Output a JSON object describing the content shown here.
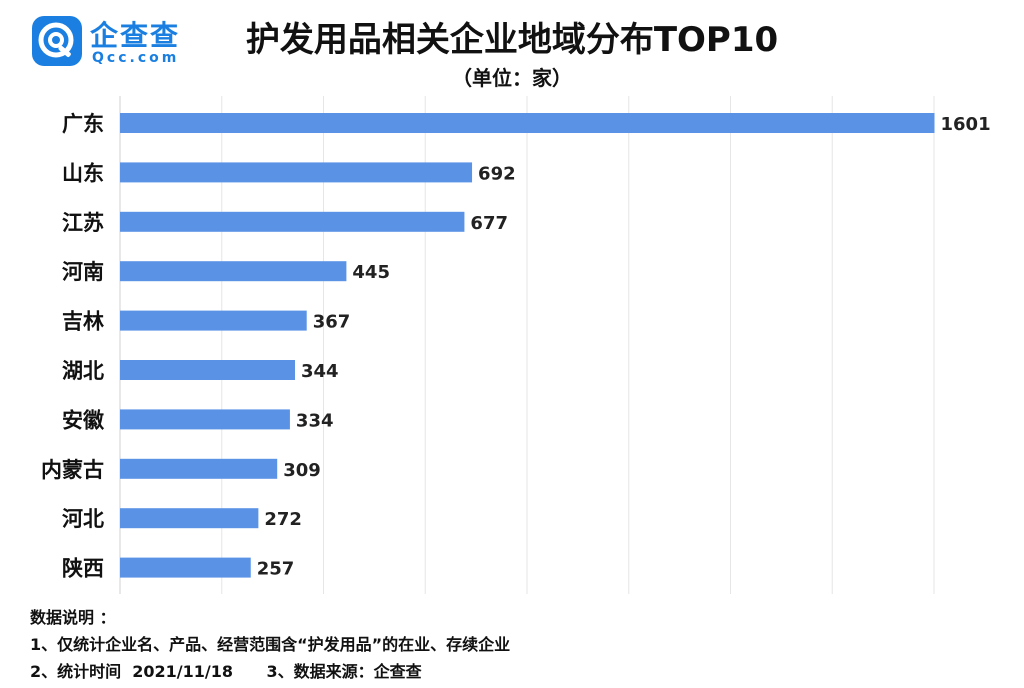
{
  "logo": {
    "text_cn": "企查查",
    "text_en": "Qcc.com"
  },
  "chart_data": {
    "type": "bar",
    "orientation": "horizontal",
    "title": "护发用品相关企业地域分布TOP10",
    "subtitle": "（单位：家）",
    "categories": [
      "广东",
      "山东",
      "江苏",
      "河南",
      "吉林",
      "湖北",
      "安徽",
      "内蒙古",
      "河北",
      "陕西"
    ],
    "values": [
      1601,
      692,
      677,
      445,
      367,
      344,
      334,
      309,
      272,
      257
    ],
    "xlim": [
      0,
      1600
    ],
    "grid": true,
    "bar_color": "#5a93e6"
  },
  "notes": {
    "heading": "数据说明 ：",
    "line1": "1、仅统计企业名、产品、经营范围含“护发用品”的在业、存续企业",
    "line2": "2、统计时间  2021/11/18      3、数据来源：企查查"
  }
}
